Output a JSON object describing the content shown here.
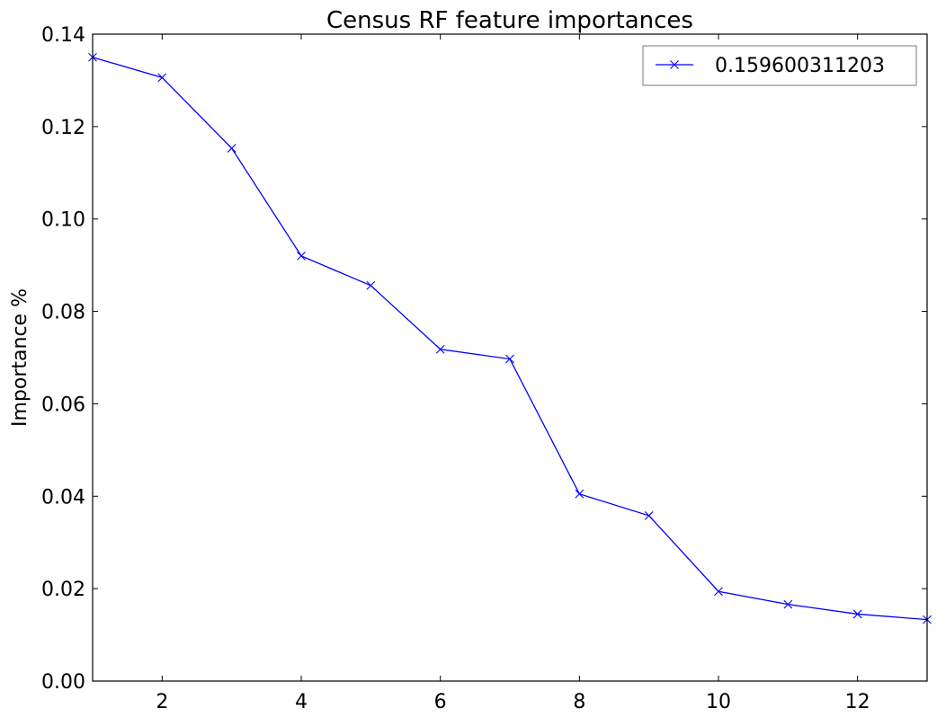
{
  "chart_data": {
    "type": "line",
    "title": "Census RF feature importances",
    "xlabel": "",
    "ylabel": "Importance %",
    "xlim": [
      1,
      13
    ],
    "ylim": [
      0.0,
      0.14
    ],
    "x_ticks": [
      2,
      4,
      6,
      8,
      10,
      12
    ],
    "x_tick_labels": [
      "2",
      "4",
      "6",
      "8",
      "10",
      "12"
    ],
    "y_ticks": [
      0.0,
      0.02,
      0.04,
      0.06,
      0.08,
      0.1,
      0.12,
      0.14
    ],
    "y_tick_labels": [
      "0.00",
      "0.02",
      "0.04",
      "0.06",
      "0.08",
      "0.10",
      "0.12",
      "0.14"
    ],
    "grid": false,
    "legend_position": "top-right",
    "series": [
      {
        "name": "0.159600311203",
        "color": "#0000ff",
        "marker": "x",
        "x": [
          1,
          2,
          3,
          4,
          5,
          6,
          7,
          8,
          9,
          10,
          11,
          12,
          13
        ],
        "values": [
          0.135,
          0.1306,
          0.1153,
          0.092,
          0.0856,
          0.0718,
          0.0697,
          0.0405,
          0.0358,
          0.0194,
          0.0166,
          0.0145,
          0.0133
        ]
      }
    ]
  }
}
